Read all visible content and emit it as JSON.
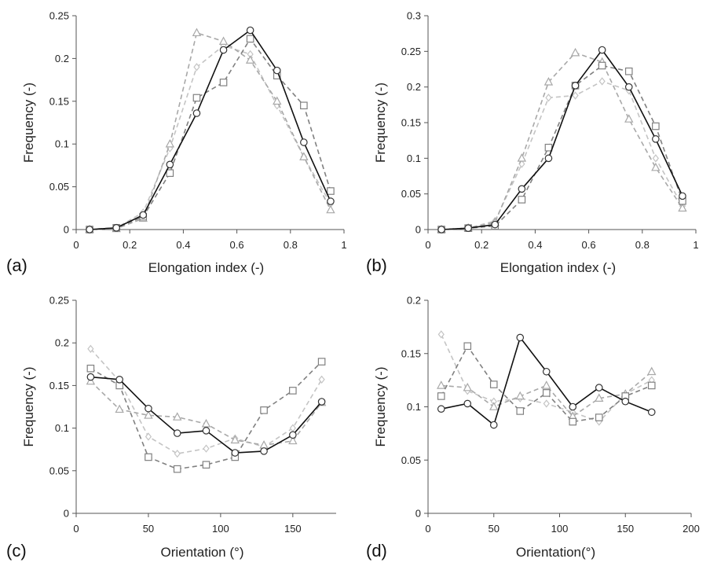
{
  "colors": {
    "series_1": "#111111",
    "series_2": "#808080",
    "series_3": "#a8a8a8",
    "series_4": "#c4c4c4"
  },
  "chart_data": [
    {
      "type": "line",
      "panel_label": "(a)",
      "xlabel": "Elongation index (-)",
      "ylabel": "Frequency (-)",
      "xlim": [
        0,
        1
      ],
      "ylim": [
        0,
        0.25
      ],
      "xticks": [
        0,
        0.2,
        0.4,
        0.6,
        0.8,
        1
      ],
      "xtick_labels": [
        "0",
        "0.2",
        "0.4",
        "0.6",
        "0.8",
        "1"
      ],
      "yticks": [
        0,
        0.05,
        0.1,
        0.15,
        0.2,
        0.25
      ],
      "ytick_labels": [
        "0",
        "0.05",
        "0.1",
        "0.15",
        "0.2",
        "0.25"
      ],
      "grid": false,
      "x": [
        0.05,
        0.15,
        0.25,
        0.35,
        0.45,
        0.55,
        0.65,
        0.75,
        0.85,
        0.95
      ],
      "series": [
        {
          "marker": "circle",
          "line": "solid",
          "color": "#111111",
          "values": [
            0.0,
            0.002,
            0.017,
            0.076,
            0.136,
            0.21,
            0.233,
            0.186,
            0.102,
            0.033
          ]
        },
        {
          "marker": "square",
          "line": "dashed",
          "color": "#808080",
          "values": [
            0.0,
            0.002,
            0.015,
            0.066,
            0.154,
            0.172,
            0.223,
            0.18,
            0.145,
            0.045
          ]
        },
        {
          "marker": "triangle",
          "line": "dashed",
          "color": "#a8a8a8",
          "values": [
            0.0,
            0.001,
            0.013,
            0.1,
            0.23,
            0.22,
            0.198,
            0.15,
            0.085,
            0.023
          ]
        },
        {
          "marker": "diamond",
          "line": "dashed",
          "color": "#c4c4c4",
          "values": [
            0.0,
            0.002,
            0.02,
            0.095,
            0.19,
            0.215,
            0.205,
            0.145,
            0.085,
            0.03
          ]
        }
      ]
    },
    {
      "type": "line",
      "panel_label": "(b)",
      "xlabel": "Elongation index (-)",
      "ylabel": "Frequency (-)",
      "xlim": [
        0,
        1
      ],
      "ylim": [
        0,
        0.3
      ],
      "xticks": [
        0,
        0.2,
        0.4,
        0.6,
        0.8,
        1
      ],
      "xtick_labels": [
        "0",
        "0.2",
        "0.4",
        "0.6",
        "0.8",
        "1"
      ],
      "yticks": [
        0,
        0.05,
        0.1,
        0.15,
        0.2,
        0.25,
        0.3
      ],
      "ytick_labels": [
        "0",
        "0.05",
        "0.1",
        "0.15",
        "0.2",
        "0.25",
        "0.3"
      ],
      "grid": false,
      "x": [
        0.05,
        0.15,
        0.25,
        0.35,
        0.45,
        0.55,
        0.65,
        0.75,
        0.85,
        0.95
      ],
      "series": [
        {
          "marker": "circle",
          "line": "solid",
          "color": "#111111",
          "values": [
            0.0,
            0.002,
            0.007,
            0.057,
            0.1,
            0.202,
            0.252,
            0.2,
            0.127,
            0.047
          ]
        },
        {
          "marker": "square",
          "line": "dashed",
          "color": "#808080",
          "values": [
            0.0,
            0.002,
            0.005,
            0.042,
            0.115,
            0.202,
            0.23,
            0.222,
            0.145,
            0.04
          ]
        },
        {
          "marker": "triangle",
          "line": "dashed",
          "color": "#a8a8a8",
          "values": [
            0.0,
            0.002,
            0.01,
            0.1,
            0.207,
            0.248,
            0.235,
            0.155,
            0.087,
            0.03
          ]
        },
        {
          "marker": "diamond",
          "line": "dashed",
          "color": "#c4c4c4",
          "values": [
            0.0,
            0.002,
            0.012,
            0.092,
            0.185,
            0.188,
            0.208,
            0.195,
            0.1,
            0.033
          ]
        }
      ]
    },
    {
      "type": "line",
      "panel_label": "(c)",
      "xlabel": "Orientation (°)",
      "ylabel": "Frequency (-)",
      "xlim": [
        0,
        180
      ],
      "ylim": [
        0,
        0.25
      ],
      "xticks": [
        0,
        50,
        100,
        150
      ],
      "xtick_labels": [
        "0",
        "50",
        "100",
        "150"
      ],
      "yticks": [
        0,
        0.05,
        0.1,
        0.15,
        0.2,
        0.25
      ],
      "ytick_labels": [
        "0",
        "0.05",
        "0.1",
        "0.15",
        "0.2",
        "0.25"
      ],
      "grid": false,
      "x": [
        10,
        30,
        50,
        70,
        90,
        110,
        130,
        150,
        170
      ],
      "series": [
        {
          "marker": "circle",
          "line": "solid",
          "color": "#111111",
          "values": [
            0.16,
            0.157,
            0.123,
            0.094,
            0.097,
            0.071,
            0.073,
            0.092,
            0.131
          ]
        },
        {
          "marker": "square",
          "line": "dashed",
          "color": "#808080",
          "values": [
            0.17,
            0.15,
            0.066,
            0.052,
            0.057,
            0.066,
            0.121,
            0.144,
            0.178
          ]
        },
        {
          "marker": "triangle",
          "line": "dashed",
          "color": "#a8a8a8",
          "values": [
            0.155,
            0.122,
            0.115,
            0.113,
            0.105,
            0.086,
            0.08,
            0.085,
            0.13
          ]
        },
        {
          "marker": "diamond",
          "line": "dashed",
          "color": "#c4c4c4",
          "values": [
            0.193,
            0.155,
            0.09,
            0.07,
            0.076,
            0.088,
            0.078,
            0.1,
            0.157
          ]
        }
      ]
    },
    {
      "type": "line",
      "panel_label": "(d)",
      "xlabel": "Orientation(°)",
      "ylabel": "Frequency (-)",
      "xlim": [
        0,
        200
      ],
      "ylim": [
        0,
        0.2
      ],
      "xticks": [
        0,
        50,
        100,
        150,
        200
      ],
      "xtick_labels": [
        "0",
        "50",
        "100",
        "150",
        "200"
      ],
      "yticks": [
        0,
        0.05,
        0.1,
        0.15,
        0.2
      ],
      "ytick_labels": [
        "0",
        "0.05",
        "0.1",
        "0.15",
        "0.2"
      ],
      "grid": false,
      "x": [
        10,
        30,
        50,
        70,
        90,
        110,
        130,
        150,
        170
      ],
      "series": [
        {
          "marker": "circle",
          "line": "solid",
          "color": "#111111",
          "values": [
            0.098,
            0.103,
            0.083,
            0.165,
            0.133,
            0.1,
            0.118,
            0.105,
            0.095
          ]
        },
        {
          "marker": "square",
          "line": "dashed",
          "color": "#808080",
          "values": [
            0.11,
            0.157,
            0.121,
            0.096,
            0.113,
            0.086,
            0.09,
            0.11,
            0.12
          ]
        },
        {
          "marker": "triangle",
          "line": "dashed",
          "color": "#a8a8a8",
          "values": [
            0.12,
            0.118,
            0.1,
            0.11,
            0.12,
            0.091,
            0.108,
            0.112,
            0.133
          ]
        },
        {
          "marker": "diamond",
          "line": "dashed",
          "color": "#c4c4c4",
          "values": [
            0.168,
            0.115,
            0.105,
            0.108,
            0.103,
            0.095,
            0.086,
            0.112,
            0.125
          ]
        }
      ]
    }
  ]
}
